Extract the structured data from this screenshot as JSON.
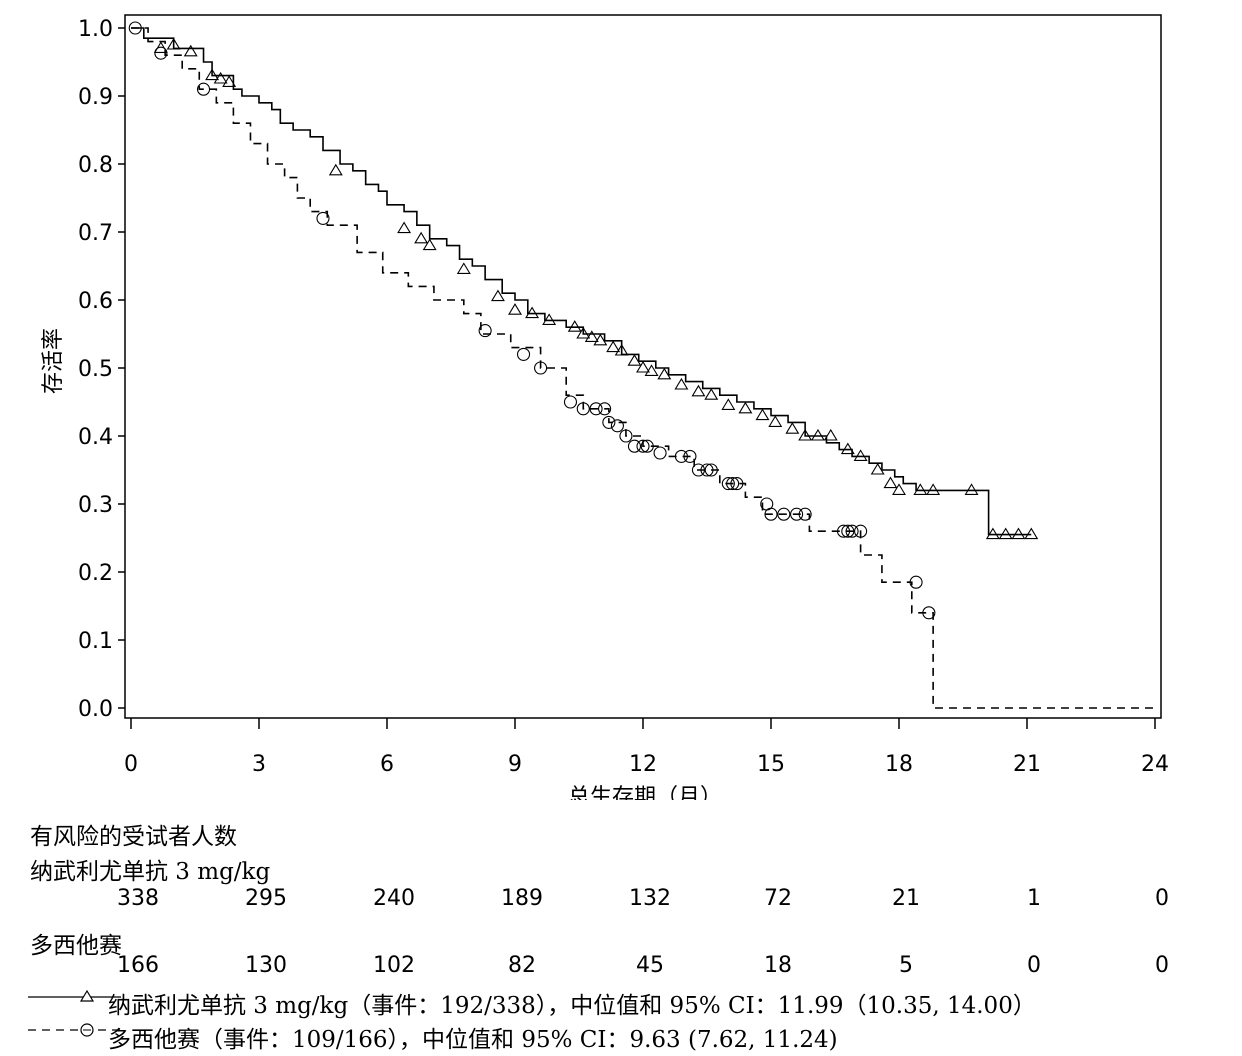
{
  "chart_data": {
    "type": "line",
    "title": "",
    "xlabel": "总生存期（月）",
    "ylabel": "存活率",
    "xlim": [
      0,
      24
    ],
    "ylim": [
      0,
      1.0
    ],
    "x_ticks": [
      0,
      3,
      6,
      9,
      12,
      15,
      18,
      21,
      24
    ],
    "y_ticks": [
      "0.0",
      "0.1",
      "0.2",
      "0.3",
      "0.4",
      "0.5",
      "0.6",
      "0.7",
      "0.8",
      "0.9",
      "1.0"
    ],
    "grid": false,
    "legend_position": "bottom",
    "series": [
      {
        "name": "纳武利尤单抗 3 mg/kg",
        "line_style": "solid",
        "marker": "triangle",
        "steps": [
          [
            0,
            1.0
          ],
          [
            0.3,
            0.985
          ],
          [
            1.0,
            0.97
          ],
          [
            1.7,
            0.95
          ],
          [
            1.9,
            0.93
          ],
          [
            2.4,
            0.91
          ],
          [
            2.6,
            0.9
          ],
          [
            3.0,
            0.89
          ],
          [
            3.3,
            0.88
          ],
          [
            3.5,
            0.86
          ],
          [
            3.8,
            0.85
          ],
          [
            4.2,
            0.84
          ],
          [
            4.5,
            0.82
          ],
          [
            4.9,
            0.8
          ],
          [
            5.2,
            0.79
          ],
          [
            5.5,
            0.77
          ],
          [
            5.8,
            0.76
          ],
          [
            6.0,
            0.74
          ],
          [
            6.4,
            0.73
          ],
          [
            6.7,
            0.71
          ],
          [
            7.0,
            0.69
          ],
          [
            7.4,
            0.68
          ],
          [
            7.7,
            0.66
          ],
          [
            8.0,
            0.65
          ],
          [
            8.3,
            0.63
          ],
          [
            8.7,
            0.61
          ],
          [
            9.0,
            0.6
          ],
          [
            9.3,
            0.58
          ],
          [
            9.7,
            0.57
          ],
          [
            10.2,
            0.56
          ],
          [
            10.6,
            0.55
          ],
          [
            11.1,
            0.54
          ],
          [
            11.5,
            0.52
          ],
          [
            11.9,
            0.51
          ],
          [
            12.3,
            0.5
          ],
          [
            12.6,
            0.49
          ],
          [
            13.0,
            0.48
          ],
          [
            13.4,
            0.47
          ],
          [
            13.8,
            0.46
          ],
          [
            14.2,
            0.45
          ],
          [
            14.6,
            0.44
          ],
          [
            15.0,
            0.43
          ],
          [
            15.4,
            0.42
          ],
          [
            15.8,
            0.4
          ],
          [
            16.3,
            0.39
          ],
          [
            16.6,
            0.38
          ],
          [
            16.9,
            0.37
          ],
          [
            17.3,
            0.36
          ],
          [
            17.6,
            0.35
          ],
          [
            17.9,
            0.34
          ],
          [
            18.1,
            0.33
          ],
          [
            18.4,
            0.32
          ],
          [
            20.1,
            0.255
          ],
          [
            21.1,
            0.255
          ]
        ],
        "censored": [
          [
            0.7,
            0.97
          ],
          [
            1.0,
            0.975
          ],
          [
            1.4,
            0.965
          ],
          [
            1.9,
            0.93
          ],
          [
            2.1,
            0.925
          ],
          [
            2.3,
            0.92
          ],
          [
            4.8,
            0.79
          ],
          [
            6.4,
            0.705
          ],
          [
            6.8,
            0.69
          ],
          [
            7.0,
            0.68
          ],
          [
            7.8,
            0.645
          ],
          [
            8.6,
            0.605
          ],
          [
            9.0,
            0.585
          ],
          [
            9.4,
            0.58
          ],
          [
            9.8,
            0.57
          ],
          [
            10.4,
            0.56
          ],
          [
            10.6,
            0.55
          ],
          [
            10.8,
            0.545
          ],
          [
            11.0,
            0.54
          ],
          [
            11.3,
            0.53
          ],
          [
            11.5,
            0.525
          ],
          [
            11.8,
            0.51
          ],
          [
            12.0,
            0.5
          ],
          [
            12.2,
            0.495
          ],
          [
            12.5,
            0.49
          ],
          [
            12.9,
            0.475
          ],
          [
            13.3,
            0.465
          ],
          [
            13.6,
            0.46
          ],
          [
            14.0,
            0.445
          ],
          [
            14.4,
            0.44
          ],
          [
            14.8,
            0.43
          ],
          [
            15.1,
            0.42
          ],
          [
            15.5,
            0.41
          ],
          [
            15.8,
            0.4
          ],
          [
            16.1,
            0.4
          ],
          [
            16.4,
            0.4
          ],
          [
            16.8,
            0.38
          ],
          [
            17.1,
            0.37
          ],
          [
            17.5,
            0.35
          ],
          [
            17.8,
            0.33
          ],
          [
            18.0,
            0.32
          ],
          [
            18.5,
            0.32
          ],
          [
            18.8,
            0.32
          ],
          [
            19.7,
            0.32
          ],
          [
            20.2,
            0.255
          ],
          [
            20.5,
            0.255
          ],
          [
            20.8,
            0.255
          ],
          [
            21.1,
            0.255
          ]
        ]
      },
      {
        "name": "多西他赛",
        "line_style": "dashed",
        "marker": "circle",
        "steps": [
          [
            0,
            1.0
          ],
          [
            0.4,
            0.98
          ],
          [
            0.8,
            0.96
          ],
          [
            1.2,
            0.94
          ],
          [
            1.6,
            0.91
          ],
          [
            2.0,
            0.89
          ],
          [
            2.4,
            0.86
          ],
          [
            2.8,
            0.83
          ],
          [
            3.2,
            0.8
          ],
          [
            3.6,
            0.78
          ],
          [
            3.9,
            0.75
          ],
          [
            4.2,
            0.73
          ],
          [
            4.6,
            0.71
          ],
          [
            5.3,
            0.67
          ],
          [
            5.9,
            0.64
          ],
          [
            6.5,
            0.62
          ],
          [
            7.1,
            0.6
          ],
          [
            7.8,
            0.58
          ],
          [
            8.2,
            0.55
          ],
          [
            8.9,
            0.53
          ],
          [
            9.6,
            0.5
          ],
          [
            10.2,
            0.46
          ],
          [
            10.6,
            0.44
          ],
          [
            11.2,
            0.42
          ],
          [
            11.6,
            0.4
          ],
          [
            12.0,
            0.385
          ],
          [
            12.6,
            0.37
          ],
          [
            13.2,
            0.35
          ],
          [
            13.8,
            0.33
          ],
          [
            14.4,
            0.31
          ],
          [
            14.8,
            0.285
          ],
          [
            15.9,
            0.26
          ],
          [
            17.1,
            0.225
          ],
          [
            17.6,
            0.185
          ],
          [
            18.3,
            0.14
          ],
          [
            18.8,
            0.0
          ],
          [
            24,
            0.0
          ]
        ],
        "censored": [
          [
            0.1,
            1.0
          ],
          [
            0.7,
            0.963
          ],
          [
            1.7,
            0.91
          ],
          [
            4.5,
            0.72
          ],
          [
            8.3,
            0.555
          ],
          [
            9.2,
            0.52
          ],
          [
            9.6,
            0.5
          ],
          [
            10.3,
            0.45
          ],
          [
            10.6,
            0.44
          ],
          [
            10.9,
            0.44
          ],
          [
            11.1,
            0.44
          ],
          [
            11.2,
            0.42
          ],
          [
            11.4,
            0.415
          ],
          [
            11.6,
            0.4
          ],
          [
            11.8,
            0.385
          ],
          [
            12.0,
            0.385
          ],
          [
            12.1,
            0.385
          ],
          [
            12.4,
            0.375
          ],
          [
            12.9,
            0.37
          ],
          [
            13.1,
            0.37
          ],
          [
            13.3,
            0.35
          ],
          [
            13.5,
            0.35
          ],
          [
            13.6,
            0.35
          ],
          [
            14.0,
            0.33
          ],
          [
            14.1,
            0.33
          ],
          [
            14.2,
            0.33
          ],
          [
            14.9,
            0.3
          ],
          [
            15.0,
            0.285
          ],
          [
            15.3,
            0.285
          ],
          [
            15.6,
            0.285
          ],
          [
            15.8,
            0.285
          ],
          [
            16.7,
            0.26
          ],
          [
            16.8,
            0.26
          ],
          [
            16.9,
            0.26
          ],
          [
            17.1,
            0.26
          ],
          [
            18.4,
            0.185
          ],
          [
            18.7,
            0.14
          ]
        ]
      }
    ]
  },
  "risk_table": {
    "title": "有风险的受试者人数",
    "groups": [
      {
        "label": "纳武利尤单抗 3 mg/kg",
        "counts": [
          "338",
          "295",
          "240",
          "189",
          "132",
          "72",
          "21",
          "1",
          "0"
        ]
      },
      {
        "label": "多西他赛",
        "counts": [
          "166",
          "130",
          "102",
          "82",
          "45",
          "18",
          "5",
          "0",
          "0"
        ]
      }
    ]
  },
  "legend": [
    {
      "text": "纳武利尤单抗 3 mg/kg（事件：192/338），中位值和 95% CI：11.99（10.35, 14.00）"
    },
    {
      "text": "多西他赛（事件：109/166），中位值和 95% CI：9.63 (7.62, 11.24)"
    }
  ]
}
